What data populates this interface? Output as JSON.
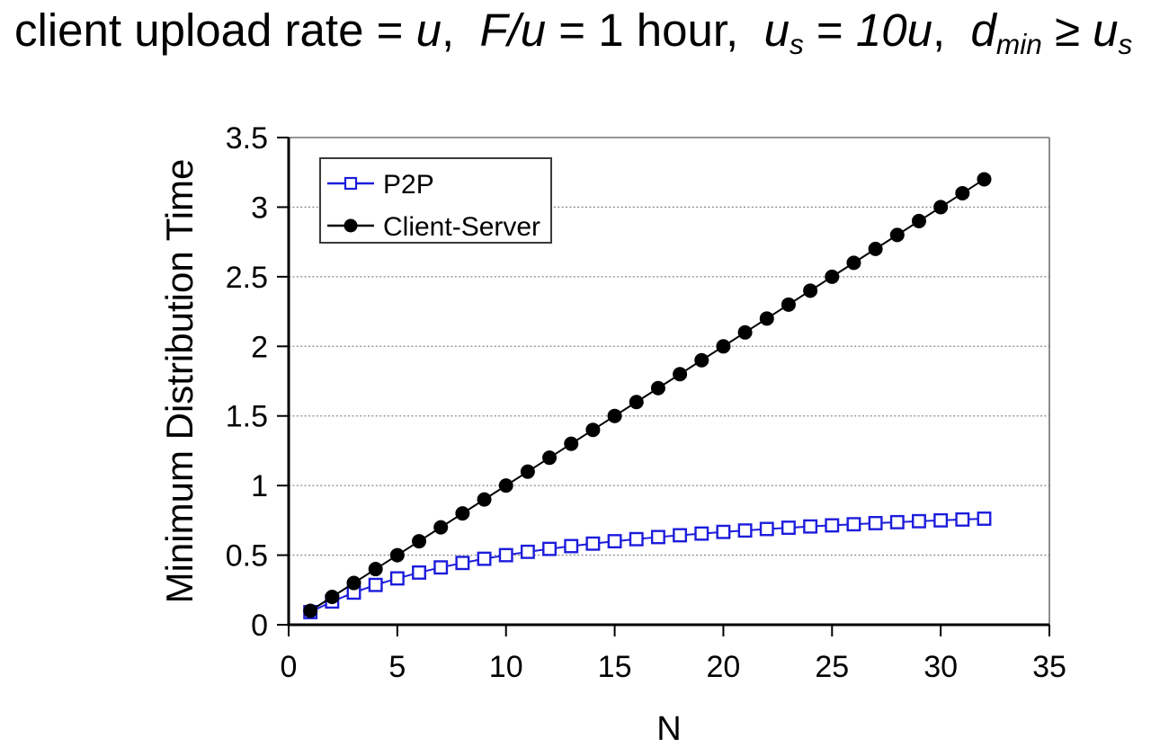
{
  "page": {
    "background": "#ffffff"
  },
  "title": {
    "text": "client upload rate = u,  F/u = 1 hour,  us = 10u,  dmin ≥ us",
    "segments": [
      {
        "t": "client upload rate = "
      },
      {
        "t": "u",
        "i": true
      },
      {
        "t": ",  "
      },
      {
        "t": "F/u",
        "i": true
      },
      {
        "t": " = 1 hour,  "
      },
      {
        "t": "u",
        "i": true
      },
      {
        "t": "s",
        "i": true,
        "sub": true
      },
      {
        "t": " = "
      },
      {
        "t": "10u",
        "i": true
      },
      {
        "t": ",  "
      },
      {
        "t": "d",
        "i": true
      },
      {
        "t": "min",
        "i": true,
        "sub": true
      },
      {
        "t": " ≥ "
      },
      {
        "t": "u",
        "i": true
      },
      {
        "t": "s",
        "i": true,
        "sub": true
      }
    ]
  },
  "chart_data": {
    "type": "line",
    "title": "",
    "xlabel": "N",
    "ylabel": "Minimum Distribution Time",
    "xlim": [
      0,
      35
    ],
    "ylim": [
      0,
      3.5
    ],
    "xticks": [
      0,
      5,
      10,
      15,
      20,
      25,
      30,
      35
    ],
    "yticks": [
      0,
      0.5,
      1,
      1.5,
      2,
      2.5,
      3,
      3.5
    ],
    "grid": "horizontal dotted gridlines at each 0.5 interval",
    "legend_position": "top-left inside plot area",
    "x": [
      1,
      2,
      3,
      4,
      5,
      6,
      7,
      8,
      9,
      10,
      11,
      12,
      13,
      14,
      15,
      16,
      17,
      18,
      19,
      20,
      21,
      22,
      23,
      24,
      25,
      26,
      27,
      28,
      29,
      30,
      31,
      32
    ],
    "series": [
      {
        "name": "P2P",
        "color": "#1c1cdc",
        "marker": "open-square",
        "values": [
          0.091,
          0.167,
          0.231,
          0.286,
          0.333,
          0.375,
          0.412,
          0.444,
          0.474,
          0.5,
          0.524,
          0.545,
          0.565,
          0.583,
          0.6,
          0.615,
          0.63,
          0.643,
          0.655,
          0.667,
          0.677,
          0.688,
          0.697,
          0.706,
          0.714,
          0.722,
          0.73,
          0.737,
          0.744,
          0.75,
          0.756,
          0.762
        ]
      },
      {
        "name": "Client-Server",
        "color": "#000000",
        "marker": "filled-circle",
        "values": [
          0.1,
          0.2,
          0.3,
          0.4,
          0.5,
          0.6,
          0.7,
          0.8,
          0.9,
          1,
          1.1,
          1.2,
          1.3,
          1.4,
          1.5,
          1.6,
          1.7,
          1.8,
          1.9,
          2,
          2.1,
          2.2,
          2.3,
          2.4,
          2.5,
          2.6,
          2.7,
          2.8,
          2.9,
          3,
          3.1,
          3.2
        ]
      }
    ],
    "colors": {
      "axis": "#000000",
      "grid": "#8a8a8a",
      "plot_border": "#707070",
      "legend_border": "#3a3a3a",
      "p2p_blue": "#1c1cdc"
    }
  }
}
